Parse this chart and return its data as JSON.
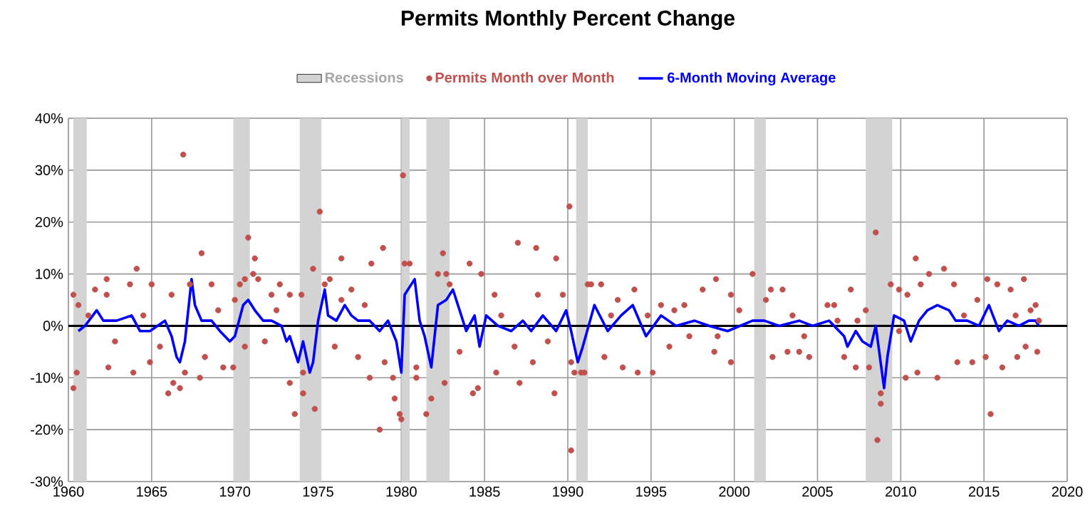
{
  "chart_data": {
    "type": "scatter",
    "title": "Permits Monthly Percent Change",
    "xlim": [
      1960,
      2020
    ],
    "xticks": [
      1960,
      1965,
      1970,
      1975,
      1980,
      1985,
      1990,
      1995,
      2000,
      2005,
      2010,
      2015,
      2020
    ],
    "ylim": [
      -30,
      40
    ],
    "yticks": [
      {
        "value": -30,
        "label": "-30%"
      },
      {
        "value": -20,
        "label": "-20%"
      },
      {
        "value": -10,
        "label": "-10%"
      },
      {
        "value": 0,
        "label": "0%"
      },
      {
        "value": 10,
        "label": "10%"
      },
      {
        "value": 20,
        "label": "20%"
      },
      {
        "value": 30,
        "label": "30%"
      },
      {
        "value": 40,
        "label": "40%"
      }
    ],
    "grid": true,
    "legend": "top",
    "bands": [
      {
        "axis": "x",
        "from": 1960.3,
        "to": 1961.1,
        "label": "Recessions",
        "color": "#d3d3d3"
      },
      {
        "axis": "x",
        "from": 1969.9,
        "to": 1970.9,
        "color": "#d3d3d3"
      },
      {
        "axis": "x",
        "from": 1973.9,
        "to": 1975.2,
        "color": "#d3d3d3"
      },
      {
        "axis": "x",
        "from": 1980.0,
        "to": 1980.5,
        "color": "#d3d3d3"
      },
      {
        "axis": "x",
        "from": 1981.5,
        "to": 1982.9,
        "color": "#d3d3d3"
      },
      {
        "axis": "x",
        "from": 1990.5,
        "to": 1991.2,
        "color": "#d3d3d3"
      },
      {
        "axis": "x",
        "from": 2001.2,
        "to": 2001.9,
        "color": "#d3d3d3"
      },
      {
        "axis": "x",
        "from": 2007.9,
        "to": 2009.5,
        "color": "#d3d3d3"
      }
    ],
    "ref_lines": [
      {
        "axis": "y",
        "value": 0,
        "color": "#000000"
      }
    ],
    "series": [
      {
        "name": "Permits Month over Month",
        "marker": "circle",
        "color": "#c0504d",
        "x": [
          1960.3,
          1960.3,
          1960.5,
          1960.6,
          1961.6,
          1962.3,
          1962.4,
          1962.3,
          1964.1,
          1963.9,
          1963.7,
          1965.0,
          1964.9,
          1966.0,
          1966.2,
          1966.3,
          1966.7,
          1966.9,
          1967.0,
          1967.3,
          1968.0,
          1968.2,
          1967.9,
          1968.6,
          1969.3,
          1969.9,
          1970.0,
          1970.3,
          1970.6,
          1970.8,
          1971.2,
          1971.1,
          1971.4,
          1970.6,
          1972.2,
          1972.7,
          1973.3,
          1973.3,
          1973.6,
          1974.0,
          1974.1,
          1974.1,
          1974.7,
          1974.8,
          1975.1,
          1975.4,
          1975.7,
          1976.4,
          1976.4,
          1977.0,
          1977.4,
          1978.1,
          1978.2,
          1978.9,
          1978.7,
          1979.0,
          1979.5,
          1979.6,
          1979.9,
          1980.0,
          1980.1,
          1980.2,
          1980.5,
          1980.9,
          1980.9,
          1981.5,
          1981.8,
          1982.2,
          1982.5,
          1982.6,
          1982.7,
          1982.9,
          1984.1,
          1984.3,
          1984.6,
          1984.8,
          1985.7,
          1985.6,
          1987.0,
          1987.1,
          1988.1,
          1988.2,
          1987.9,
          1989.3,
          1989.2,
          1989.7,
          1990.1,
          1990.2,
          1990.2,
          1990.4,
          1990.8,
          1991.0,
          1991.2,
          1991.4,
          1992.0,
          1992.2,
          1993.0,
          1993.3,
          1994.0,
          1994.2,
          1995.1,
          1995.6,
          1996.1,
          1997.0,
          1997.3,
          1998.1,
          1998.9,
          1998.8,
          1999.8,
          1999.8,
          2001.1,
          2001.9,
          2002.2,
          2002.3,
          2002.9,
          2003.2,
          2003.9,
          2004.5,
          2005.6,
          2006.0,
          2006.6,
          2007.0,
          2007.3,
          2007.4,
          2007.9,
          2008.1,
          2008.5,
          2008.6,
          2008.8,
          2008.8,
          2009.4,
          2009.9,
          2010.3,
          2010.4,
          2010.9,
          2011.0,
          2011.2,
          2011.7,
          2012.2,
          2012.6,
          2013.2,
          2013.4,
          2014.3,
          2014.6,
          2015.1,
          2015.2,
          2015.4,
          2015.8,
          2016.1,
          2016.6,
          2017.0,
          2017.4,
          2017.5,
          2017.8,
          2018.1,
          2018.2,
          1961.2,
          1962.8,
          1964.5,
          1965.5,
          1969.0,
          1971.8,
          1972.5,
          1976.0,
          1977.8,
          1983.5,
          1986.0,
          1986.8,
          1988.8,
          1992.6,
          1994.8,
          1996.4,
          1999.0,
          2000.3,
          2003.5,
          2004.2,
          2006.2,
          2009.9,
          2013.8,
          2016.9,
          2018.3
        ],
        "values": [
          -12,
          6,
          -9,
          4,
          7,
          6,
          -8,
          9,
          11,
          -9,
          8,
          8,
          -7,
          -13,
          6,
          -11,
          -12,
          33,
          -9,
          8,
          14,
          -6,
          -10,
          8,
          -8,
          -8,
          5,
          8,
          9,
          17,
          13,
          10,
          9,
          -4,
          6,
          8,
          6,
          -11,
          -17,
          6,
          -9,
          -13,
          11,
          -16,
          22,
          8,
          9,
          13,
          5,
          7,
          -6,
          -10,
          12,
          15,
          -20,
          -7,
          -10,
          -14,
          -17,
          -18,
          29,
          12,
          12,
          -8,
          -10,
          -17,
          -14,
          10,
          14,
          -11,
          10,
          8,
          12,
          -13,
          -12,
          10,
          -9,
          6,
          16,
          -11,
          15,
          6,
          -7,
          13,
          -13,
          6,
          23,
          -24,
          -7,
          -9,
          -9,
          -9,
          8,
          8,
          8,
          -6,
          5,
          -8,
          7,
          -9,
          -9,
          4,
          -4,
          4,
          -2,
          7,
          9,
          -5,
          -7,
          6,
          10,
          5,
          7,
          -6,
          7,
          -5,
          -5,
          -6,
          4,
          4,
          -6,
          7,
          -8,
          1,
          3,
          -8,
          18,
          -22,
          -15,
          -13,
          8,
          7,
          -10,
          6,
          13,
          -9,
          8,
          10,
          -10,
          11,
          8,
          -7,
          -7,
          5,
          -6,
          9,
          -17,
          8,
          -8,
          7,
          -6,
          9,
          -4,
          3,
          4,
          -5,
          2,
          -3,
          2,
          -4,
          3,
          -3,
          3,
          -4,
          4,
          -5,
          2,
          -4,
          -3,
          2,
          2,
          3,
          -2,
          3,
          2,
          -2,
          1,
          -1,
          2,
          2,
          1
        ]
      },
      {
        "name": "6-Month Moving Average",
        "type": "line",
        "marker": "none",
        "line_style": "solid",
        "color": "#0000ff",
        "x": [
          1960.6,
          1961.0,
          1961.7,
          1962.1,
          1962.9,
          1963.8,
          1964.3,
          1964.9,
          1965.8,
          1966.2,
          1966.5,
          1966.7,
          1967.0,
          1967.4,
          1967.6,
          1968.0,
          1968.6,
          1969.1,
          1969.7,
          1970.0,
          1970.5,
          1970.8,
          1971.2,
          1971.7,
          1972.2,
          1972.8,
          1973.1,
          1973.3,
          1973.8,
          1974.1,
          1974.5,
          1974.7,
          1975.0,
          1975.4,
          1975.6,
          1976.1,
          1976.6,
          1977.0,
          1977.4,
          1978.1,
          1978.7,
          1979.2,
          1979.7,
          1980.0,
          1980.2,
          1980.8,
          1981.1,
          1981.4,
          1981.8,
          1982.2,
          1982.7,
          1983.1,
          1983.5,
          1983.9,
          1984.4,
          1984.7,
          1985.1,
          1985.8,
          1986.6,
          1987.3,
          1987.8,
          1988.5,
          1989.3,
          1989.9,
          1990.2,
          1990.6,
          1990.9,
          1991.6,
          1992.4,
          1993.2,
          1993.9,
          1994.7,
          1995.6,
          1996.5,
          1997.6,
          1998.5,
          1999.6,
          2001.1,
          2001.8,
          2002.7,
          2003.9,
          2004.7,
          2005.7,
          2006.6,
          2006.8,
          2007.3,
          2007.7,
          2008.2,
          2008.5,
          2009.0,
          2009.2,
          2009.6,
          2010.2,
          2010.6,
          2011.1,
          2011.6,
          2012.2,
          2012.9,
          2013.3,
          2014.0,
          2014.7,
          2015.3,
          2015.9,
          2016.4,
          2017.1,
          2017.7,
          2018.1,
          2018.3
        ],
        "values": [
          -1,
          0,
          3,
          1,
          1,
          2,
          -1,
          -1,
          1,
          -2,
          -6,
          -7,
          -3,
          9,
          4,
          1,
          1,
          -1,
          -3,
          -2,
          4,
          5,
          3,
          1,
          1,
          0,
          -3,
          -2,
          -7,
          -3,
          -9,
          -7,
          1,
          7,
          2,
          1,
          4,
          2,
          1,
          1,
          -1,
          1,
          -3,
          -9,
          6,
          9,
          1,
          -2,
          -8,
          4,
          5,
          7,
          3,
          -1,
          2,
          -4,
          2,
          0,
          -1,
          1,
          -1,
          2,
          -1,
          3,
          -1,
          -7,
          -4,
          4,
          -1,
          2,
          4,
          -2,
          2,
          0,
          1,
          0,
          -1,
          1,
          1,
          0,
          1,
          0,
          1,
          -2,
          -4,
          -1,
          -3,
          -4,
          0,
          -12,
          -6,
          2,
          1,
          -3,
          1,
          3,
          4,
          3,
          1,
          1,
          0,
          4,
          -1,
          1,
          0,
          1,
          1,
          0
        ]
      }
    ]
  }
}
